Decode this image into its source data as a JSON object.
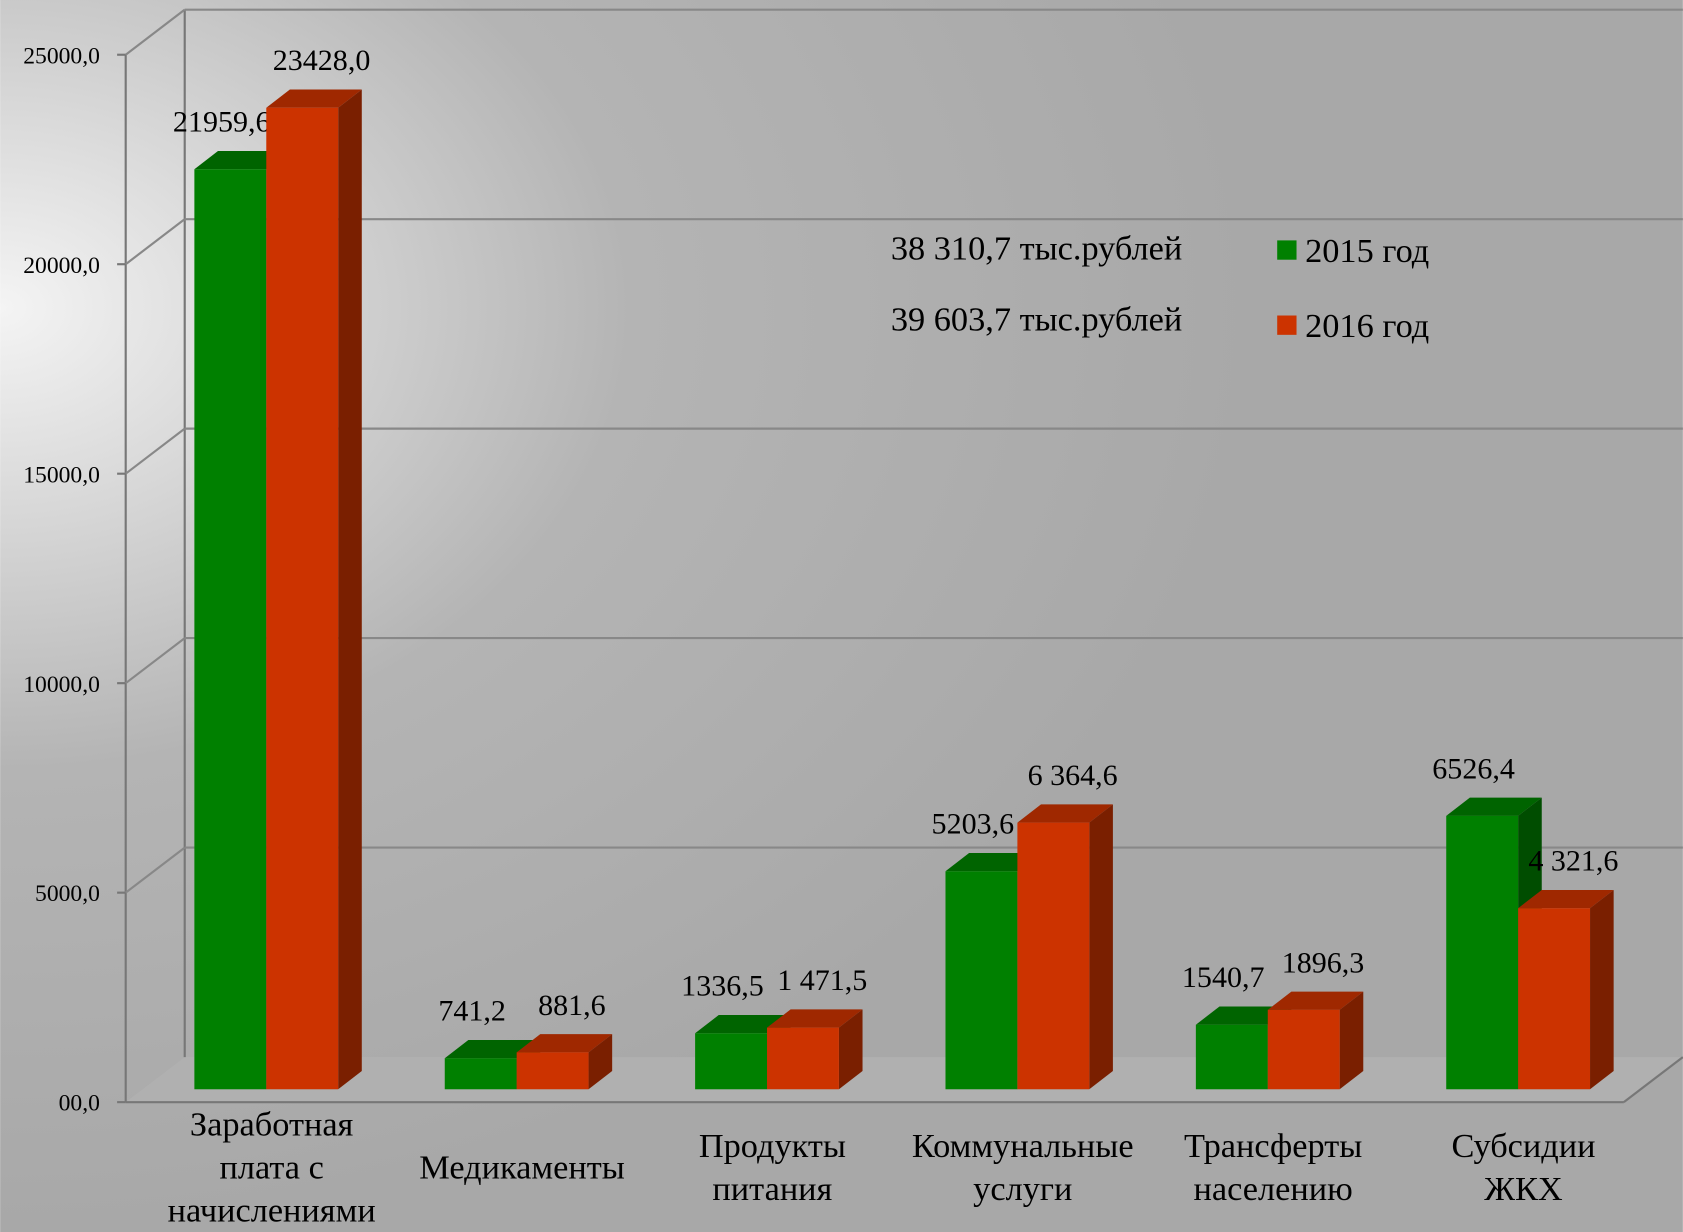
{
  "chart_data": {
    "type": "bar3d",
    "categories": [
      "Заработная\nплата с\nначислениями",
      "Медикаменты",
      "Продукты\nпитания",
      "Коммунальные\nуслуги",
      "Трансферты\nнаселению",
      "Субсидии\nЖКХ"
    ],
    "series": [
      {
        "name": "2015 год",
        "color": "#008000",
        "values": [
          21959.6,
          741.2,
          1336.5,
          5203.6,
          1540.7,
          6526.4
        ],
        "value_labels": [
          "21959,6",
          "741,2",
          "1336,5",
          "5203,6",
          "1540,7",
          "6526,4"
        ]
      },
      {
        "name": "2016 год",
        "color": "#cc3300",
        "values": [
          23428.0,
          881.6,
          1471.5,
          6364.6,
          1896.3,
          4321.6
        ],
        "value_labels": [
          "23428,0",
          "881,6",
          "1 471,5",
          "6 364,6",
          "1896,3",
          "4 321,6"
        ]
      }
    ],
    "annotations": [
      "38 310,7 тыс.рублей",
      "39 603,7 тыс.рублей"
    ],
    "ylim": [
      0,
      25000
    ],
    "yticks": [
      {
        "value": 0,
        "label": "00,0"
      },
      {
        "value": 5000,
        "label": "5000,0"
      },
      {
        "value": 10000,
        "label": "10000,0"
      },
      {
        "value": 15000,
        "label": "15000,0"
      },
      {
        "value": 20000,
        "label": "20000,0"
      },
      {
        "value": 25000,
        "label": "25000,0"
      }
    ],
    "grid": true
  }
}
